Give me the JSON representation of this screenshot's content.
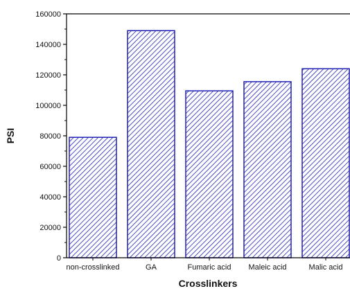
{
  "chart_data": {
    "type": "bar",
    "categories": [
      "non-crosslinked",
      "GA",
      "Fumaric acid",
      "Maleic acid",
      "Malic acid"
    ],
    "values": [
      79000,
      149000,
      109500,
      115500,
      124000
    ],
    "xlabel": "Crosslinkers",
    "ylabel": "PSI",
    "ylim": [
      0,
      160000
    ],
    "yticks": [
      0,
      20000,
      40000,
      60000,
      80000,
      100000,
      120000,
      140000,
      160000
    ],
    "ytick_labels": [
      "0",
      "20000",
      "40000",
      "60000",
      "80000",
      "100000",
      "120000",
      "140000",
      "160000"
    ],
    "grid": false,
    "legend": "none",
    "bar_color": "#1f1fb4",
    "bar_pattern": "diagonal-hatch"
  }
}
